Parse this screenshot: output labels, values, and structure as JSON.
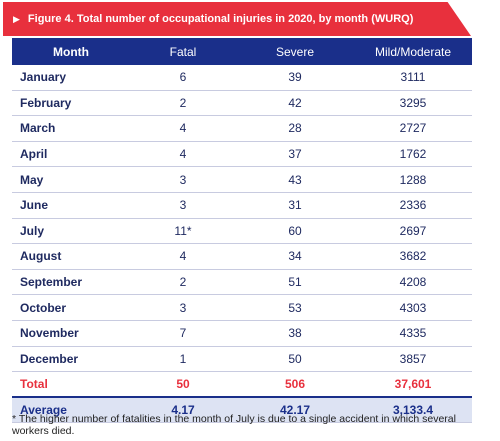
{
  "figure": {
    "marker": "▶",
    "title": "Figure 4. Total number of occupational injuries in 2020, by month (WURQ)"
  },
  "table": {
    "headers": [
      "Month",
      "Fatal",
      "Severe",
      "Mild/Moderate"
    ],
    "rows": [
      {
        "month": "January",
        "fatal": "6",
        "severe": "39",
        "mild": "3111"
      },
      {
        "month": "February",
        "fatal": "2",
        "severe": "42",
        "mild": "3295"
      },
      {
        "month": "March",
        "fatal": "4",
        "severe": "28",
        "mild": "2727"
      },
      {
        "month": "April",
        "fatal": "4",
        "severe": "37",
        "mild": "1762"
      },
      {
        "month": "May",
        "fatal": "3",
        "severe": "43",
        "mild": "1288"
      },
      {
        "month": "June",
        "fatal": "3",
        "severe": "31",
        "mild": "2336"
      },
      {
        "month": "July",
        "fatal": "11*",
        "severe": "60",
        "mild": "2697"
      },
      {
        "month": "August",
        "fatal": "4",
        "severe": "34",
        "mild": "3682"
      },
      {
        "month": "September",
        "fatal": "2",
        "severe": "51",
        "mild": "4208"
      },
      {
        "month": "October",
        "fatal": "3",
        "severe": "53",
        "mild": "4303"
      },
      {
        "month": "November",
        "fatal": "7",
        "severe": "38",
        "mild": "4335"
      },
      {
        "month": "December",
        "fatal": "1",
        "severe": "50",
        "mild": "3857"
      }
    ],
    "total": {
      "label": "Total",
      "fatal": "50",
      "severe": "506",
      "mild": "37,601"
    },
    "average": {
      "label": "Average",
      "fatal": "4.17",
      "severe": "42.17",
      "mild": "3,133.4"
    }
  },
  "footnote": "* The higher number of fatalities in the month of July is due to a single accident in which several workers died.",
  "colors": {
    "banner": "#e8303d",
    "header": "#1a2f8a",
    "average_row": "#dde3f3"
  }
}
